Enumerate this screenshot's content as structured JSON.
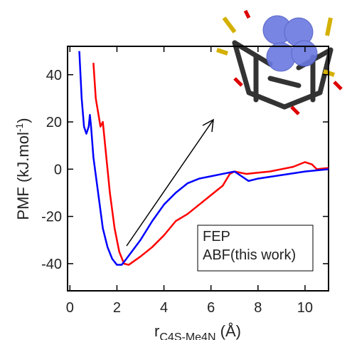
{
  "chart_data": {
    "type": "line",
    "xlabel": {
      "main": "r",
      "sub": "C4S-Me4N",
      "end": " (Å)"
    },
    "ylabel": {
      "main": "PMF (kJ.mol",
      "sup": "-1",
      "end": ")"
    },
    "xlim": [
      -0.1,
      11
    ],
    "ylim": [
      -51.5,
      52
    ],
    "xticks": [
      0,
      2,
      4,
      6,
      8,
      10
    ],
    "yticks": [
      -40,
      -20,
      0,
      20,
      40
    ],
    "legend": "lower right",
    "series": [
      {
        "name": "FEP",
        "color": "#ff0000",
        "x": [
          1.0,
          1.1,
          1.3,
          1.4,
          1.5,
          1.7,
          1.9,
          2.1,
          2.3,
          2.5,
          3.0,
          3.5,
          4.0,
          4.5,
          5.0,
          5.5,
          6.0,
          6.5,
          6.8,
          7.0,
          7.5,
          8.0,
          8.5,
          9.0,
          9.5,
          10.0,
          10.3,
          10.5,
          11.0
        ],
        "values": [
          45,
          30,
          18,
          20,
          10,
          -10,
          -25,
          -35,
          -40,
          -40.5,
          -37,
          -33,
          -28,
          -22,
          -19,
          -15,
          -11,
          -7,
          -2,
          -1,
          -2,
          -1.5,
          -1,
          0,
          1,
          3,
          2,
          0,
          0.5
        ]
      },
      {
        "name": "ABF(this work)",
        "color": "#0000ff",
        "x": [
          0.4,
          0.5,
          0.6,
          0.7,
          0.8,
          0.85,
          0.9,
          1.0,
          1.2,
          1.4,
          1.6,
          1.8,
          2.0,
          2.2,
          2.4,
          3.0,
          3.5,
          4.0,
          4.5,
          5.0,
          5.5,
          6.0,
          6.5,
          7.0,
          7.3,
          7.6,
          8.0,
          9.0,
          10.0,
          11.0
        ],
        "values": [
          50,
          30,
          18,
          15,
          18,
          23,
          18,
          5,
          -10,
          -25,
          -33,
          -38,
          -40.5,
          -40.5,
          -38,
          -30,
          -22,
          -15,
          -10,
          -6,
          -4,
          -3,
          -2,
          -1,
          -3,
          -5,
          -4,
          -2.5,
          -1,
          0
        ]
      }
    ]
  }
}
